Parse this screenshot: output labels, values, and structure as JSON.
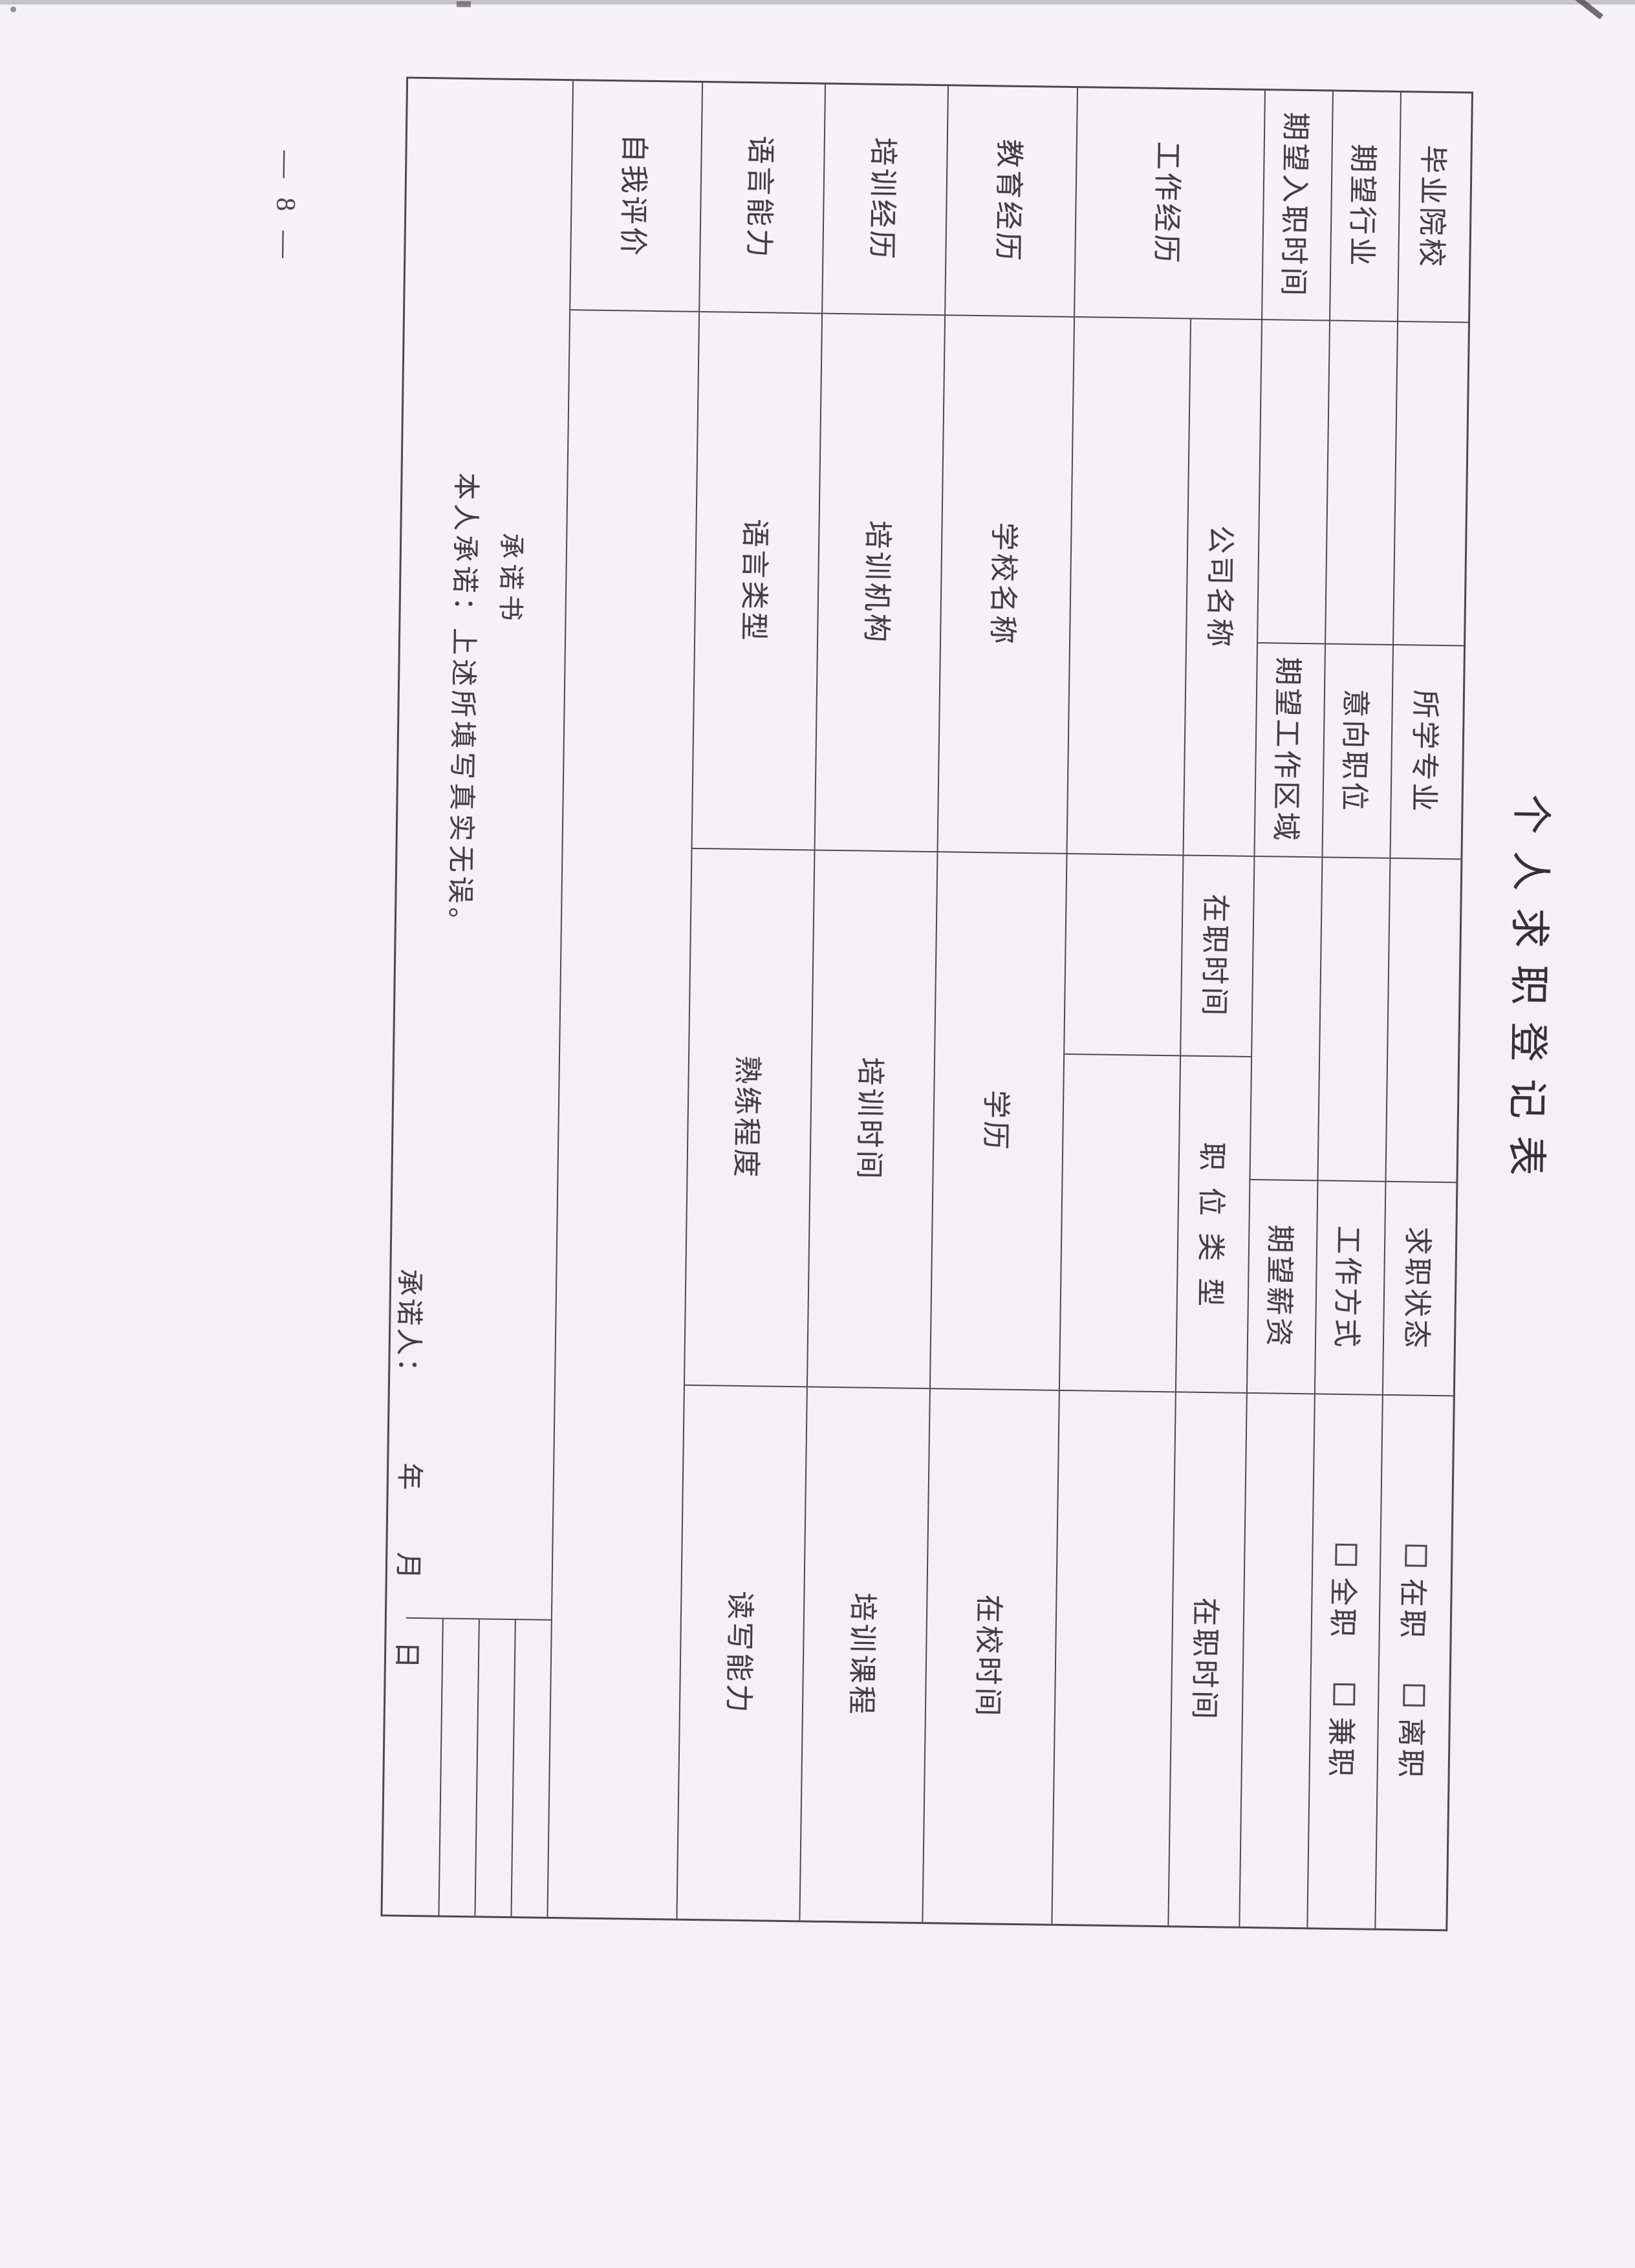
{
  "page": {
    "number": "— 8 —"
  },
  "colors": {
    "line": "#4b4b4b",
    "text": "#3d3b3e",
    "paper": "#f6f0f7"
  },
  "form": {
    "title": "个人求职登记表",
    "rows": {
      "r1": {
        "l1": "毕业院校",
        "l2": "所学专业",
        "l3": "求职状态",
        "cb1": "在职",
        "cb2": "离职"
      },
      "r2": {
        "l1": "期望行业",
        "l2": "意向职位",
        "l3": "工作方式",
        "cb1": "全职",
        "cb2": "兼职"
      },
      "r3": {
        "l1": "期望入职时间",
        "l2": "期望工作区域",
        "l3": "期望薪资"
      }
    },
    "sections": {
      "work": {
        "label": "工作经历",
        "c1": "公司名称",
        "c2": "在职时间",
        "c3": "职位类型",
        "c4": "在职时间"
      },
      "edu": {
        "label": "教育经历",
        "c1": "学校名称",
        "c2": "学历",
        "c3": "在校时间"
      },
      "training": {
        "label": "培训经历",
        "c1": "培训机构",
        "c2": "培训时间",
        "c3": "培训课程"
      },
      "language": {
        "label": "语言能力",
        "c1": "语言类型",
        "c2": "熟练程度",
        "c3": "读写能力"
      },
      "selfeval": {
        "label": "自我评价"
      }
    },
    "promise": {
      "heading": "承诺书",
      "body": "本人承诺：上述所填写真实无误。",
      "signer": "承诺人：",
      "date": "年　　月　　日"
    }
  }
}
